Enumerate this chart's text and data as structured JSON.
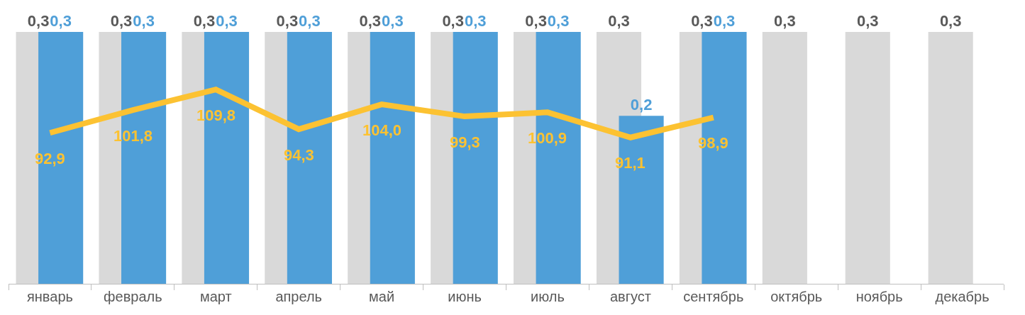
{
  "chart_data": {
    "type": "bar",
    "categories": [
      "январь",
      "февраль",
      "март",
      "апрель",
      "май",
      "июнь",
      "июль",
      "август",
      "сентябрь",
      "октябрь",
      "ноябрь",
      "декабрь"
    ],
    "series": [
      {
        "color": "#d9d9d9",
        "values": [
          0.3,
          0.3,
          0.3,
          0.3,
          0.3,
          0.3,
          0.3,
          0.3,
          0.3,
          0.3,
          0.3,
          0.3
        ],
        "value_labels": [
          "0,3",
          "0,3",
          "0,3",
          "0,3",
          "0,3",
          "0,3",
          "0,3",
          "0,3",
          "0,3",
          "0,3",
          "0,3",
          "0,3"
        ]
      },
      {
        "color": "#4f9fd8",
        "values": [
          0.3,
          0.3,
          0.3,
          0.3,
          0.3,
          0.3,
          0.3,
          0.2,
          0.3,
          null,
          null,
          null
        ],
        "value_labels": [
          "0,3",
          "0,3",
          "0,3",
          "0,3",
          "0,3",
          "0,3",
          "0,3",
          "0,2",
          "0,3",
          null,
          null,
          null
        ]
      },
      {
        "type": "line",
        "axis": "y2",
        "color": "#fcc232",
        "values": [
          92.9,
          101.8,
          109.8,
          94.3,
          104.0,
          99.3,
          100.9,
          91.1,
          98.9,
          null,
          null,
          null
        ],
        "value_labels": [
          "92,9",
          "101,8",
          "109,8",
          "94,3",
          "104,0",
          "99,3",
          "100,9",
          "91,1",
          "98,9",
          null,
          null,
          null
        ]
      }
    ],
    "tick_labels": "x"
  }
}
